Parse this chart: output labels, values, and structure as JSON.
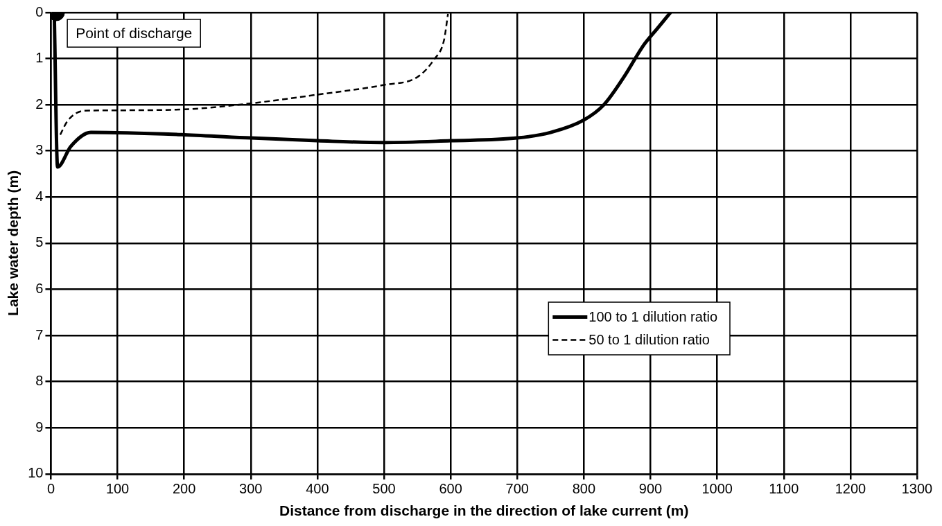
{
  "chart_data": {
    "type": "line",
    "xlabel": "Distance from discharge in the direction of lake current (m)",
    "ylabel": "Lake water depth (m)",
    "xlim": [
      0,
      1300
    ],
    "xticks": [
      0,
      100,
      200,
      300,
      400,
      500,
      600,
      700,
      800,
      900,
      1000,
      1100,
      1200,
      1300
    ],
    "ylim": [
      10,
      0
    ],
    "yticks": [
      0,
      1,
      2,
      3,
      4,
      5,
      6,
      7,
      8,
      9,
      10
    ],
    "grid": true,
    "legend": "right",
    "annotations": [
      {
        "text": "Point of discharge",
        "x": 8,
        "y": 0
      }
    ],
    "series": [
      {
        "name": "100 to 1 dilution ratio",
        "color": "#000000",
        "line_style": "solid",
        "x": [
          5,
          10,
          30,
          60,
          200,
          300,
          400,
          500,
          600,
          700,
          750,
          800,
          830,
          860,
          890,
          910,
          930
        ],
        "values": [
          0,
          3.35,
          2.9,
          2.6,
          2.65,
          2.72,
          2.78,
          2.82,
          2.78,
          2.72,
          2.6,
          2.33,
          2.0,
          1.4,
          0.7,
          0.35,
          0
        ]
      },
      {
        "name": "50 to 1 dilution ratio",
        "color": "#000000",
        "line_style": "dashed",
        "x": [
          14,
          25,
          50,
          100,
          200,
          300,
          400,
          500,
          550,
          575,
          590,
          596
        ],
        "values": [
          2.65,
          2.35,
          2.13,
          2.12,
          2.1,
          1.97,
          1.78,
          1.57,
          1.4,
          1.02,
          0.6,
          0.03
        ]
      },
      {
        "type": "scatter",
        "color": "#000000",
        "marker": "circle",
        "x": [
          8
        ],
        "values": [
          0
        ]
      }
    ]
  }
}
